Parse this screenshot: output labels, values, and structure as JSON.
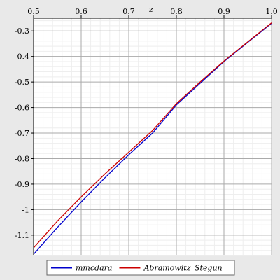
{
  "chart_data": {
    "type": "line",
    "xlabel": "z",
    "ylabel": "",
    "xlim": [
      0.5,
      1.0
    ],
    "ylim": [
      -1.18,
      -0.25
    ],
    "x_ticks": [
      0.5,
      0.6,
      0.7,
      0.8,
      0.9,
      1.0
    ],
    "x_tick_labels": [
      "0.5",
      "0.6",
      "0.7",
      "0.8",
      "0.9",
      "1.0"
    ],
    "y_ticks": [
      -0.3,
      -0.4,
      -0.5,
      -0.6,
      -0.7,
      -0.8,
      -0.9,
      -1.0,
      -1.1
    ],
    "y_tick_labels": [
      "-0.3",
      "-0.4",
      "-0.5",
      "-0.6",
      "-0.7",
      "-0.8",
      "-0.9",
      "-1",
      "-1.1"
    ],
    "grid": true,
    "legend_position": "bottom",
    "x_axis_position": "top",
    "series": [
      {
        "name": "mmcdara",
        "color": "#0000cc",
        "x": [
          0.5,
          0.55,
          0.6,
          0.65,
          0.7,
          0.75,
          0.8,
          0.85,
          0.9,
          0.95,
          1.0
        ],
        "y": [
          -1.175,
          -1.07,
          -0.97,
          -0.875,
          -0.785,
          -0.7,
          -0.59,
          -0.505,
          -0.42,
          -0.345,
          -0.27
        ]
      },
      {
        "name": "Abramowitz_Stegun",
        "color": "#cc0000",
        "x": [
          0.5,
          0.55,
          0.6,
          0.65,
          0.7,
          0.75,
          0.8,
          0.85,
          0.9,
          0.95,
          1.0
        ],
        "y": [
          -1.15,
          -1.045,
          -0.95,
          -0.86,
          -0.775,
          -0.69,
          -0.585,
          -0.5,
          -0.418,
          -0.343,
          -0.268
        ]
      }
    ]
  }
}
